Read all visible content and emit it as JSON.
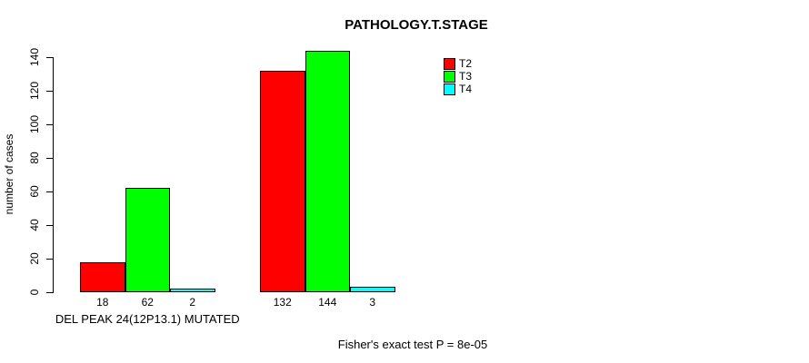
{
  "chart_data": {
    "type": "bar",
    "title": "PATHOLOGY.T.STAGE",
    "ylabel": "number of cases",
    "xlabel": "",
    "footer": "Fisher's exact test P = 8e-05",
    "ylim": [
      0,
      140
    ],
    "yticks": [
      0,
      20,
      40,
      60,
      80,
      100,
      120,
      140
    ],
    "grid": false,
    "legend_position": "topright",
    "categories": [
      "DEL PEAK 24(12P13.1) MUTATED",
      ""
    ],
    "series": [
      {
        "name": "T2",
        "color": "#ff0000",
        "values": [
          18,
          132
        ]
      },
      {
        "name": "T3",
        "color": "#00ff00",
        "values": [
          62,
          144
        ]
      },
      {
        "name": "T4",
        "color": "#00ffff",
        "values": [
          2,
          3
        ]
      }
    ],
    "bar_value_labels": [
      [
        "18",
        "62",
        "2"
      ],
      [
        "132",
        "144",
        "3"
      ]
    ],
    "legend": {
      "entries": [
        {
          "label": "T2",
          "color": "#ff0000"
        },
        {
          "label": "T3",
          "color": "#00ff00"
        },
        {
          "label": "T4",
          "color": "#00ffff"
        }
      ]
    },
    "colors": {
      "background": "#ffffff",
      "axis": "#000000",
      "bar_border": "#000000",
      "text": "#000000"
    }
  }
}
